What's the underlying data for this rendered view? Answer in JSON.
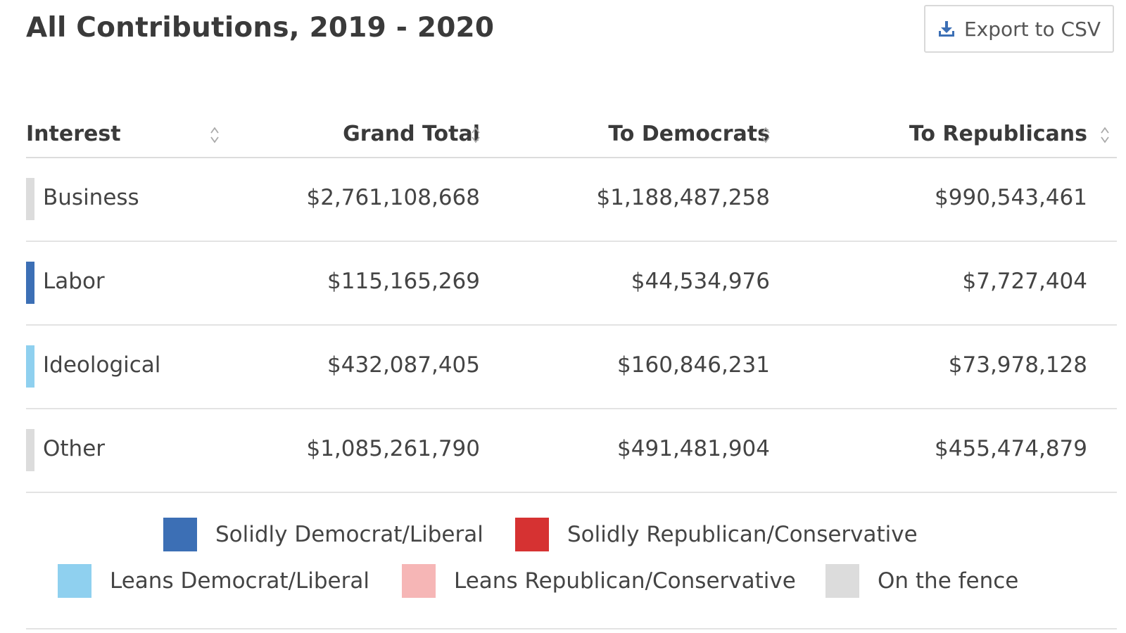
{
  "header": {
    "title": "All Contributions, 2019 - 2020",
    "export_label": "Export to CSV"
  },
  "table": {
    "columns": [
      {
        "label": "Interest"
      },
      {
        "label": "Grand Total"
      },
      {
        "label": "To Democrats"
      },
      {
        "label": "To Republicans"
      }
    ],
    "rows": [
      {
        "interest": "Business",
        "grand_total": "$2,761,108,668",
        "to_democrats": "$1,188,487,258",
        "to_republicans": "$990,543,461",
        "color": "#dcdcdc"
      },
      {
        "interest": "Labor",
        "grand_total": "$115,165,269",
        "to_democrats": "$44,534,976",
        "to_republicans": "$7,727,404",
        "color": "#3c6fb5"
      },
      {
        "interest": "Ideological",
        "grand_total": "$432,087,405",
        "to_democrats": "$160,846,231",
        "to_republicans": "$73,978,128",
        "color": "#8fd0ef"
      },
      {
        "interest": "Other",
        "grand_total": "$1,085,261,790",
        "to_democrats": "$491,481,904",
        "to_republicans": "$455,474,879",
        "color": "#dcdcdc"
      }
    ]
  },
  "legend": {
    "items": [
      {
        "label": "Solidly Democrat/Liberal",
        "color": "#3c6fb5"
      },
      {
        "label": "Solidly Republican/Conservative",
        "color": "#d63232"
      },
      {
        "label": "Leans Democrat/Liberal",
        "color": "#8fd0ef"
      },
      {
        "label": "Leans Republican/Conservative",
        "color": "#f6b6b6"
      },
      {
        "label": "On the fence",
        "color": "#dcdcdc"
      }
    ]
  },
  "icons": {
    "export": "download-icon",
    "sort": "sort-icon"
  },
  "colors": {
    "accent": "#3c6fb5"
  }
}
